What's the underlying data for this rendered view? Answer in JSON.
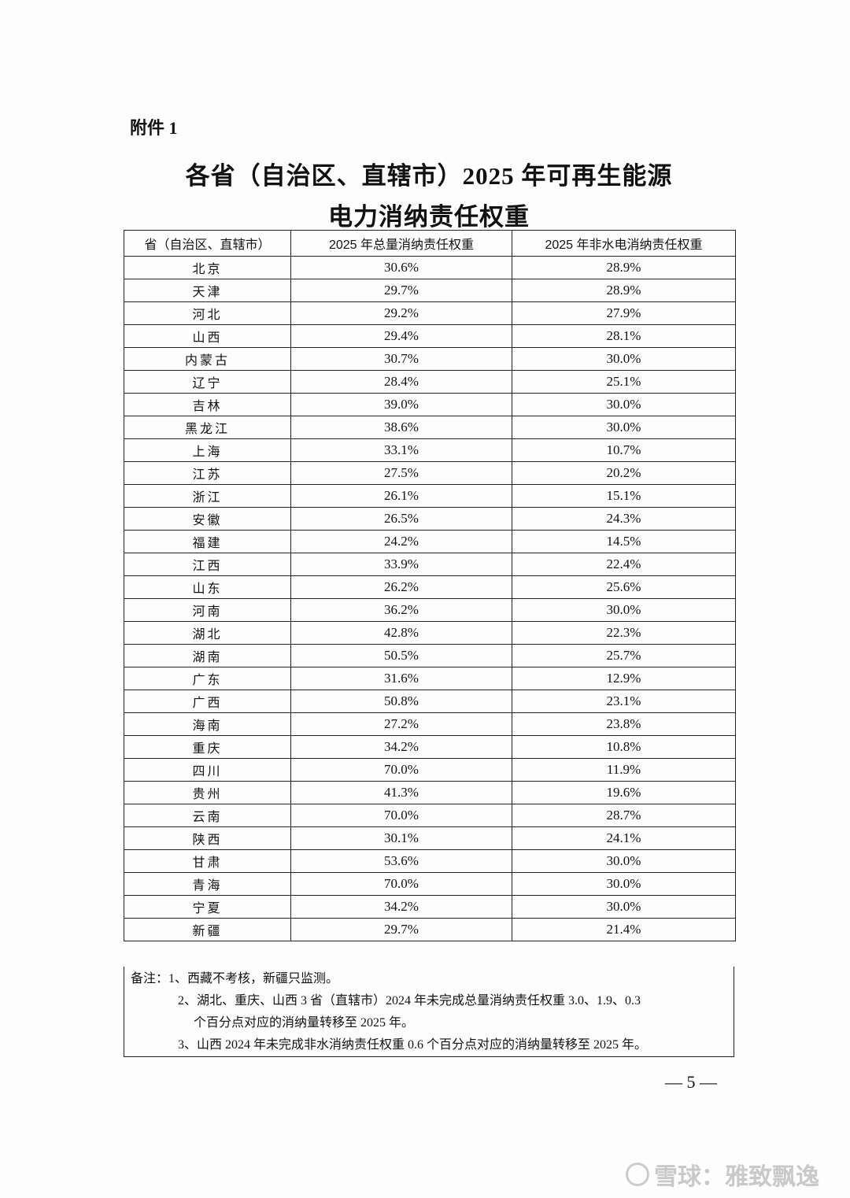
{
  "attachment_label": "附件 1",
  "title_line1": "各省（自治区、直辖市）2025 年可再生能源",
  "title_line2": "电力消纳责任权重",
  "table": {
    "headers": [
      "省（自治区、直辖市）",
      "2025 年总量消纳责任权重",
      "2025 年非水电消纳责任权重"
    ],
    "rows": [
      [
        "北京",
        "30.6%",
        "28.9%"
      ],
      [
        "天津",
        "29.7%",
        "28.9%"
      ],
      [
        "河北",
        "29.2%",
        "27.9%"
      ],
      [
        "山西",
        "29.4%",
        "28.1%"
      ],
      [
        "内蒙古",
        "30.7%",
        "30.0%"
      ],
      [
        "辽宁",
        "28.4%",
        "25.1%"
      ],
      [
        "吉林",
        "39.0%",
        "30.0%"
      ],
      [
        "黑龙江",
        "38.6%",
        "30.0%"
      ],
      [
        "上海",
        "33.1%",
        "10.7%"
      ],
      [
        "江苏",
        "27.5%",
        "20.2%"
      ],
      [
        "浙江",
        "26.1%",
        "15.1%"
      ],
      [
        "安徽",
        "26.5%",
        "24.3%"
      ],
      [
        "福建",
        "24.2%",
        "14.5%"
      ],
      [
        "江西",
        "33.9%",
        "22.4%"
      ],
      [
        "山东",
        "26.2%",
        "25.6%"
      ],
      [
        "河南",
        "36.2%",
        "30.0%"
      ],
      [
        "湖北",
        "42.8%",
        "22.3%"
      ],
      [
        "湖南",
        "50.5%",
        "25.7%"
      ],
      [
        "广东",
        "31.6%",
        "12.9%"
      ],
      [
        "广西",
        "50.8%",
        "23.1%"
      ],
      [
        "海南",
        "27.2%",
        "23.8%"
      ],
      [
        "重庆",
        "34.2%",
        "10.8%"
      ],
      [
        "四川",
        "70.0%",
        "11.9%"
      ],
      [
        "贵州",
        "41.3%",
        "19.6%"
      ],
      [
        "云南",
        "70.0%",
        "28.7%"
      ],
      [
        "陕西",
        "30.1%",
        "24.1%"
      ],
      [
        "甘肃",
        "53.6%",
        "30.0%"
      ],
      [
        "青海",
        "70.0%",
        "30.0%"
      ],
      [
        "宁夏",
        "34.2%",
        "30.0%"
      ],
      [
        "新疆",
        "29.7%",
        "21.4%"
      ]
    ]
  },
  "notes": {
    "line1": "备注：1、西藏不考核，新疆只监测。",
    "line2": "2、湖北、重庆、山西 3 省（直辖市）2024 年未完成总量消纳责任权重 3.0、1.9、0.3",
    "line3": "个百分点对应的消纳量转移至 2025 年。",
    "line4": "3、山西 2024 年未完成非水消纳责任权重 0.6 个百分点对应的消纳量转移至 2025 年。"
  },
  "page_number": "— 5 —",
  "watermark": "雪球：雅致飘逸"
}
